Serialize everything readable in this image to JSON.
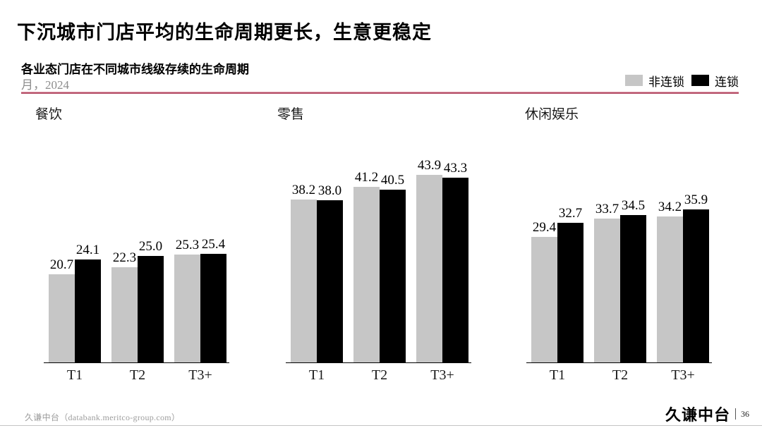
{
  "header": {
    "title": "下沉城市门店平均的生命周期更长，生意更稳定"
  },
  "chart_header": {
    "subtitle": "各业态门店在不同城市线级存续的生命周期",
    "unit_label": "月，2024"
  },
  "legend": {
    "items": [
      {
        "label": "非连锁",
        "color": "#c6c6c6"
      },
      {
        "label": "连锁",
        "color": "#000000"
      }
    ]
  },
  "chart_data": {
    "type": "bar",
    "title": "各业态门店在不同城市线级存续的生命周期",
    "unit_note": "月，2024",
    "categories": [
      "T1",
      "T2",
      "T3+"
    ],
    "ylim": [
      0,
      45
    ],
    "grid": false,
    "legend_position": "top-right",
    "value_labels": true,
    "panels": [
      {
        "title": "餐饮",
        "series": [
          {
            "name": "非连锁",
            "color": "#c6c6c6",
            "values": [
              20.7,
              22.3,
              25.3
            ]
          },
          {
            "name": "连锁",
            "color": "#000000",
            "values": [
              24.1,
              25.0,
              25.4
            ]
          }
        ]
      },
      {
        "title": "零售",
        "series": [
          {
            "name": "非连锁",
            "color": "#c6c6c6",
            "values": [
              38.2,
              41.2,
              43.9
            ]
          },
          {
            "name": "连锁",
            "color": "#000000",
            "values": [
              38.0,
              40.5,
              43.3
            ]
          }
        ]
      },
      {
        "title": "休闲娱乐",
        "series": [
          {
            "name": "非连锁",
            "color": "#c6c6c6",
            "values": [
              29.4,
              33.7,
              34.2
            ]
          },
          {
            "name": "连锁",
            "color": "#000000",
            "values": [
              32.7,
              34.5,
              35.9
            ]
          }
        ]
      }
    ]
  },
  "footer": {
    "source": "久谦中台（databank.meritco-group.com）",
    "brand": "久谦中台",
    "page": "36"
  },
  "style_tokens": {
    "accent_line_color": "#b44d66",
    "bar_gray": "#c6c6c6",
    "bar_black": "#000000"
  }
}
